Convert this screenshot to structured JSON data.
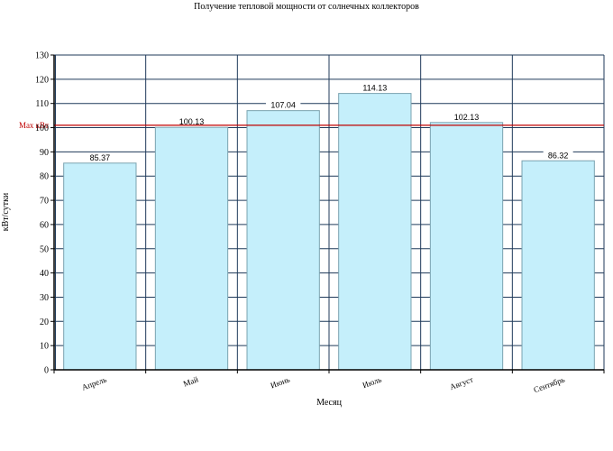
{
  "chart_data": {
    "type": "bar",
    "title": "Получение тепловой мощности от солнечных коллекторов",
    "xlabel": "Месяц",
    "ylabel": "кВт/сутки",
    "categories": [
      "Апрель",
      "Май",
      "Июнь",
      "Июль",
      "Август",
      "Сентябрь"
    ],
    "values": [
      85.37,
      100.13,
      107.04,
      114.13,
      102.13,
      86.32
    ],
    "data_labels": [
      "85.37",
      "100.13",
      "107.04",
      "114.13",
      "102.13",
      "86.32"
    ],
    "ylim": [
      0,
      130
    ],
    "yticks": [
      0,
      10,
      20,
      30,
      40,
      50,
      60,
      70,
      80,
      90,
      100,
      110,
      120,
      130
    ],
    "grid": true,
    "bar_color": "#c5effb",
    "bar_edge_color": "#7aa3b0",
    "grid_color": "#1f3a5a",
    "reference_line": {
      "label": "Max кВт",
      "value": 101,
      "color": "#c00000"
    }
  }
}
